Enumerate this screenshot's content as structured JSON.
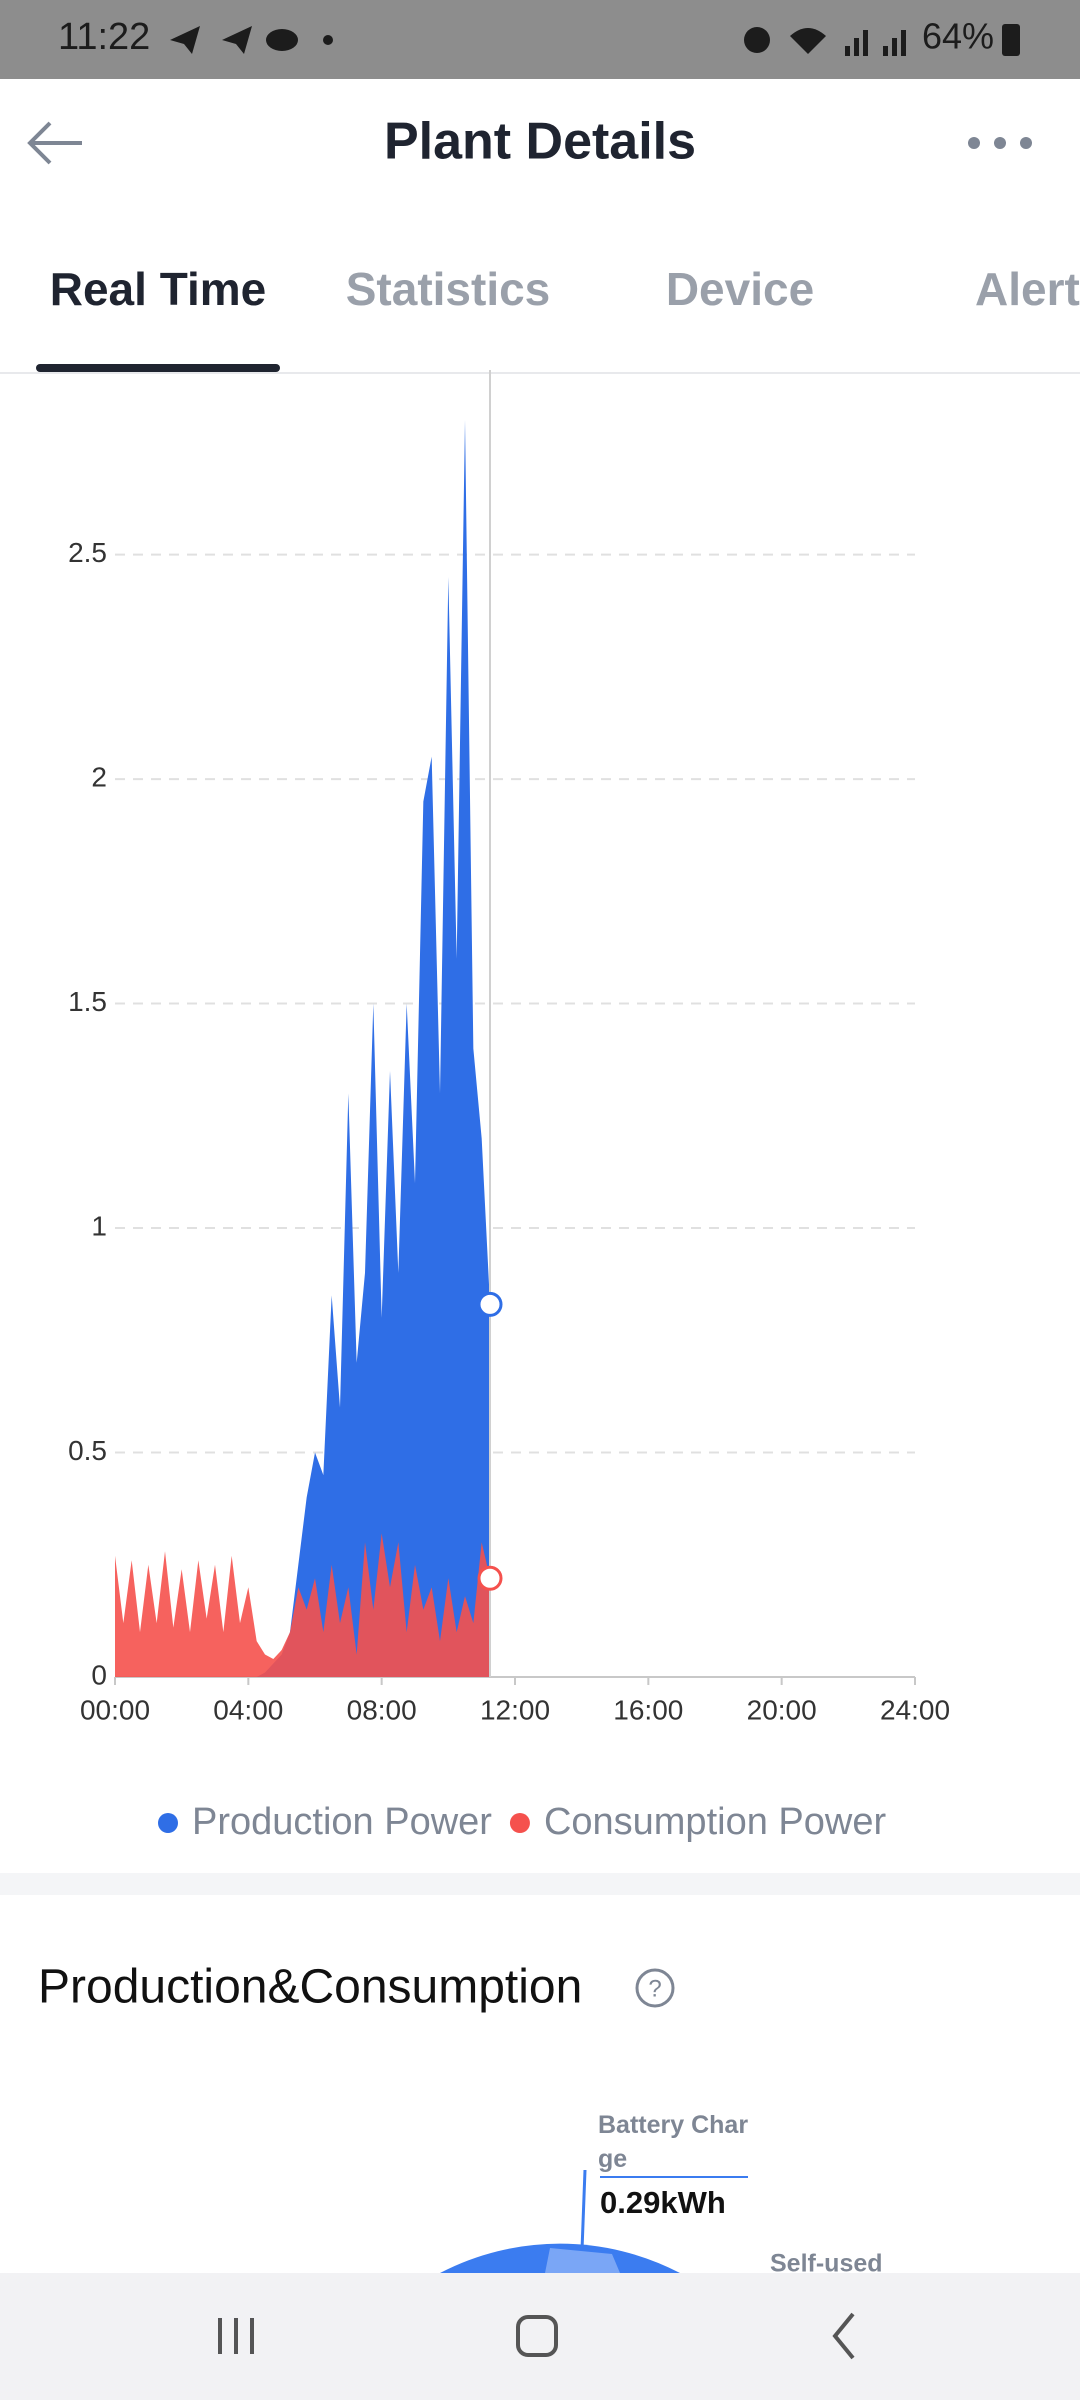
{
  "status_bar": {
    "time": "11:22",
    "battery": "64%"
  },
  "header": {
    "title": "Plant Details"
  },
  "tabs": [
    "Real Time",
    "Statistics",
    "Device",
    "Alert"
  ],
  "chart_data": {
    "type": "area",
    "x": [
      0,
      0.25,
      0.5,
      0.75,
      1,
      1.25,
      1.5,
      1.75,
      2,
      2.25,
      2.5,
      2.75,
      3,
      3.25,
      3.5,
      3.75,
      4,
      4.25,
      4.5,
      4.75,
      5,
      5.25,
      5.5,
      5.75,
      6,
      6.25,
      6.5,
      6.75,
      7,
      7.25,
      7.5,
      7.75,
      8,
      8.25,
      8.5,
      8.75,
      9,
      9.25,
      9.5,
      9.75,
      10,
      10.25,
      10.5,
      10.75,
      11,
      11.25
    ],
    "xlim": [
      0,
      24
    ],
    "xticks": [
      {
        "value": 0,
        "label": "00:00"
      },
      {
        "value": 4,
        "label": "04:00"
      },
      {
        "value": 8,
        "label": "08:00"
      },
      {
        "value": 12,
        "label": "12:00"
      },
      {
        "value": 16,
        "label": "16:00"
      },
      {
        "value": 20,
        "label": "20:00"
      },
      {
        "value": 24,
        "label": "24:00"
      }
    ],
    "ylim": [
      0,
      2.9
    ],
    "yticks": [
      0,
      0.5,
      1,
      1.5,
      2,
      2.5
    ],
    "grid": true,
    "series": [
      {
        "name": "Production Power",
        "color": "#2f6ee6",
        "values": [
          0,
          0,
          0,
          0,
          0,
          0,
          0,
          0,
          0,
          0,
          0,
          0,
          0,
          0,
          0,
          0,
          0,
          0,
          0.01,
          0.03,
          0.05,
          0.1,
          0.25,
          0.4,
          0.5,
          0.45,
          0.85,
          0.6,
          1.3,
          0.7,
          0.9,
          1.5,
          0.8,
          1.35,
          0.9,
          1.5,
          1.1,
          1.95,
          2.05,
          1.3,
          2.45,
          1.6,
          2.8,
          1.4,
          1.2,
          0.83
        ]
      },
      {
        "name": "Consumption Power",
        "color": "#f5514d",
        "values": [
          0.27,
          0.12,
          0.26,
          0.1,
          0.25,
          0.12,
          0.28,
          0.11,
          0.24,
          0.1,
          0.26,
          0.13,
          0.25,
          0.1,
          0.27,
          0.12,
          0.2,
          0.08,
          0.05,
          0.04,
          0.06,
          0.1,
          0.2,
          0.15,
          0.22,
          0.1,
          0.25,
          0.12,
          0.2,
          0.05,
          0.3,
          0.15,
          0.32,
          0.2,
          0.3,
          0.1,
          0.25,
          0.15,
          0.2,
          0.08,
          0.22,
          0.1,
          0.18,
          0.12,
          0.3,
          0.22
        ]
      }
    ]
  },
  "section": {
    "title": "Production&Consumption"
  },
  "donut_labels": {
    "battery_charge": "Battery Charge",
    "battery_charge_value": "0.29kWh",
    "self_used": "Self-used"
  }
}
